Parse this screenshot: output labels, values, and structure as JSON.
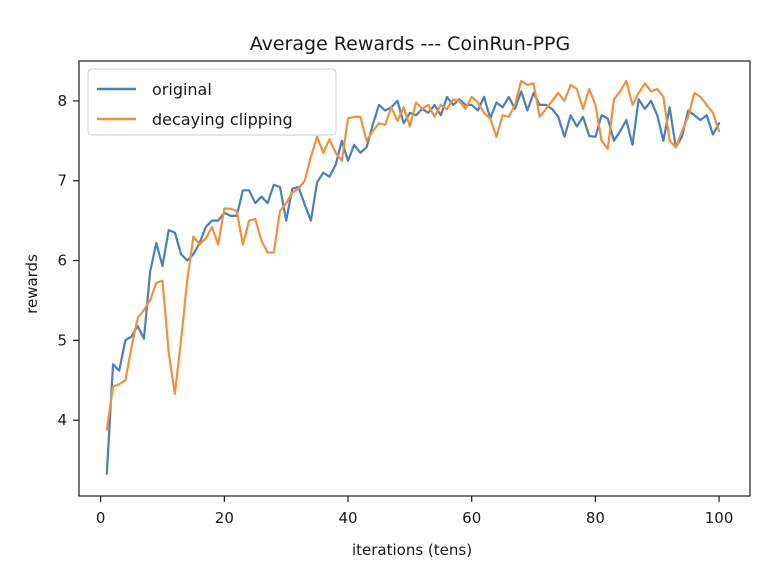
{
  "chart_data": {
    "type": "line",
    "title": "Average Rewards --- CoinRun-PPG",
    "xlabel": "iterations (tens)",
    "ylabel": "rewards",
    "xlim": [
      -3.5,
      105
    ],
    "ylim": [
      3.05,
      8.5
    ],
    "xticks": [
      0,
      20,
      40,
      60,
      80,
      100
    ],
    "yticks": [
      4,
      5,
      6,
      7,
      8
    ],
    "grid": false,
    "legend_position": "top-left",
    "x": [
      1,
      2,
      3,
      4,
      5,
      6,
      7,
      8,
      9,
      10,
      11,
      12,
      13,
      14,
      15,
      16,
      17,
      18,
      19,
      20,
      21,
      22,
      23,
      24,
      25,
      26,
      27,
      28,
      29,
      30,
      31,
      32,
      33,
      34,
      35,
      36,
      37,
      38,
      39,
      40,
      41,
      42,
      43,
      44,
      45,
      46,
      47,
      48,
      49,
      50,
      51,
      52,
      53,
      54,
      55,
      56,
      57,
      58,
      59,
      60,
      61,
      62,
      63,
      64,
      65,
      66,
      67,
      68,
      69,
      70,
      71,
      72,
      73,
      74,
      75,
      76,
      77,
      78,
      79,
      80,
      81,
      82,
      83,
      84,
      85,
      86,
      87,
      88,
      89,
      90,
      91,
      92,
      93,
      94,
      95,
      96,
      97,
      98,
      99,
      100
    ],
    "series": [
      {
        "name": "original",
        "color": "#4a7fb9",
        "values": [
          3.33,
          4.7,
          4.62,
          5.0,
          5.05,
          5.18,
          5.02,
          5.86,
          6.22,
          5.93,
          6.38,
          6.35,
          6.08,
          6.0,
          6.08,
          6.22,
          6.42,
          6.5,
          6.5,
          6.6,
          6.56,
          6.56,
          6.88,
          6.88,
          6.72,
          6.8,
          6.72,
          6.95,
          6.92,
          6.5,
          6.9,
          6.92,
          6.7,
          6.5,
          6.98,
          7.1,
          7.05,
          7.2,
          7.5,
          7.25,
          7.45,
          7.35,
          7.42,
          7.7,
          7.95,
          7.88,
          7.92,
          8.0,
          7.72,
          7.85,
          7.82,
          7.9,
          7.85,
          7.95,
          7.82,
          8.05,
          7.95,
          8.02,
          7.95,
          7.95,
          7.88,
          8.05,
          7.78,
          7.98,
          7.92,
          8.05,
          7.9,
          8.12,
          7.88,
          8.1,
          7.95,
          7.95,
          7.9,
          7.8,
          7.55,
          7.82,
          7.68,
          7.8,
          7.56,
          7.55,
          7.82,
          7.78,
          7.5,
          7.62,
          7.76,
          7.45,
          8.02,
          7.9,
          8.0,
          7.82,
          7.5,
          7.92,
          7.42,
          7.55,
          7.88,
          7.82,
          7.76,
          7.82,
          7.58,
          7.72
        ]
      },
      {
        "name": "decaying clipping",
        "color": "#f0913d",
        "values": [
          3.88,
          4.42,
          4.45,
          4.5,
          4.92,
          5.28,
          5.38,
          5.5,
          5.72,
          5.75,
          4.85,
          4.33,
          5.0,
          5.75,
          6.3,
          6.2,
          6.28,
          6.42,
          6.2,
          6.65,
          6.65,
          6.62,
          6.2,
          6.5,
          6.52,
          6.25,
          6.1,
          6.1,
          6.62,
          6.72,
          6.85,
          6.9,
          7.0,
          7.3,
          7.55,
          7.35,
          7.52,
          7.35,
          7.25,
          7.78,
          7.8,
          7.8,
          7.5,
          7.62,
          7.72,
          7.7,
          7.92,
          7.75,
          7.92,
          7.68,
          7.98,
          7.9,
          7.95,
          7.8,
          7.95,
          7.9,
          8.02,
          8.0,
          7.9,
          8.05,
          7.98,
          7.85,
          7.78,
          7.55,
          7.82,
          7.8,
          7.95,
          8.25,
          8.2,
          8.22,
          7.8,
          7.9,
          8.0,
          8.1,
          8.0,
          8.2,
          8.15,
          7.9,
          8.15,
          7.95,
          7.5,
          7.4,
          8.02,
          8.12,
          8.25,
          7.95,
          8.1,
          8.22,
          8.12,
          8.15,
          8.05,
          7.5,
          7.42,
          7.62,
          7.8,
          8.1,
          8.05,
          7.95,
          7.85,
          7.62
        ]
      }
    ]
  }
}
